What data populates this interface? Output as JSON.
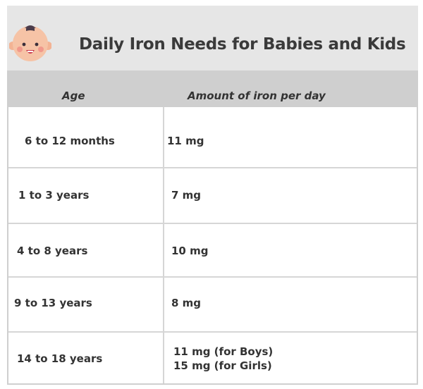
{
  "title": "Daily Iron Needs for Babies and Kids",
  "icon": "baby-face-icon",
  "table": {
    "headers": {
      "age": "Age",
      "amount": "Amount of iron per day"
    },
    "rows": [
      {
        "age": "6 to 12 months",
        "amount": [
          "11 mg"
        ]
      },
      {
        "age": "1 to 3 years",
        "amount": [
          "7 mg"
        ]
      },
      {
        "age": "4 to 8 years",
        "amount": [
          "10 mg"
        ]
      },
      {
        "age": "9 to 13 years",
        "amount": [
          "8 mg"
        ]
      },
      {
        "age": "14 to 18 years",
        "amount": [
          "11 mg (for Boys)",
          "15 mg (for Girls)"
        ]
      }
    ]
  },
  "colors": {
    "header_bg": "#e6e6e6",
    "table_header_bg": "#cfcfcf",
    "grid": "#d6d6d6",
    "text": "#333333",
    "baby_skin": "#f6bfa0",
    "baby_hair": "#4a3b4a"
  }
}
